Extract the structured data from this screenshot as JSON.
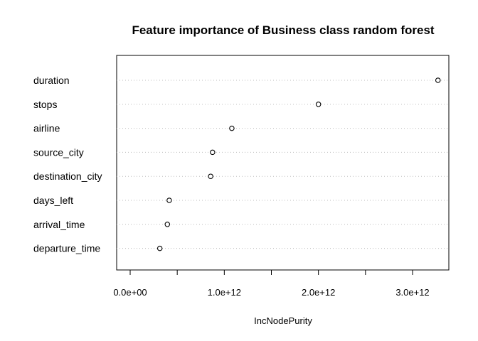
{
  "chart_data": {
    "type": "scatter",
    "title": "Feature importance of Business class random forest",
    "xlabel": "IncNodePurity",
    "ylabel": "",
    "categories": [
      "duration",
      "stops",
      "airline",
      "source_city",
      "destination_city",
      "days_left",
      "arrival_time",
      "departure_time"
    ],
    "values": [
      3270000000000.0,
      2000000000000.0,
      1080000000000.0,
      875000000000.0,
      855000000000.0,
      415000000000.0,
      395000000000.0,
      315000000000.0
    ],
    "xlim": [
      0,
      3400000000000.0
    ],
    "xticks": [
      0,
      500000000000.0,
      1000000000000.0,
      1500000000000.0,
      2000000000000.0,
      2500000000000.0,
      3000000000000.0
    ],
    "xtick_labels": [
      "0.0e+00",
      "",
      "1.0e+12",
      "",
      "2.0e+12",
      "",
      "3.0e+12"
    ],
    "grid": "dotted horizontal",
    "legend": "none"
  }
}
